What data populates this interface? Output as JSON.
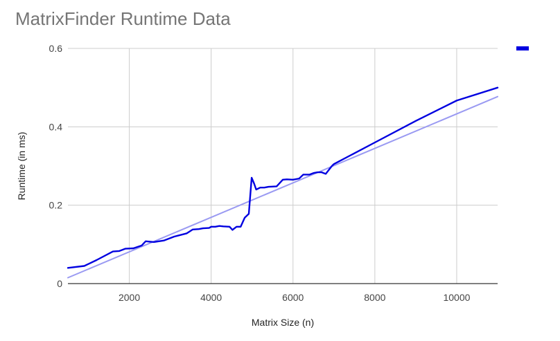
{
  "chart_data": {
    "type": "line",
    "title": "MatrixFinder Runtime Data",
    "xlabel": "Matrix Size (n)",
    "ylabel": "Runtime (in ms)",
    "xlim": [
      500,
      11000
    ],
    "ylim": [
      0,
      0.6
    ],
    "x_ticks": [
      2000,
      4000,
      6000,
      8000,
      10000
    ],
    "y_ticks": [
      0,
      0.2,
      0.4,
      0.6
    ],
    "x_tick_labels": [
      "2000",
      "4000",
      "6000",
      "8000",
      "10000"
    ],
    "y_tick_labels": [
      "0",
      "0.2",
      "0.4",
      "0.6"
    ],
    "grid": true,
    "legend": "right",
    "series": [
      {
        "color": "#0000e0",
        "points": [
          [
            500,
            0.04
          ],
          [
            900,
            0.045
          ],
          [
            1200,
            0.06
          ],
          [
            1600,
            0.082
          ],
          [
            1750,
            0.083
          ],
          [
            1900,
            0.089
          ],
          [
            2100,
            0.09
          ],
          [
            2300,
            0.097
          ],
          [
            2400,
            0.108
          ],
          [
            2600,
            0.106
          ],
          [
            2850,
            0.11
          ],
          [
            3100,
            0.12
          ],
          [
            3400,
            0.128
          ],
          [
            3550,
            0.138
          ],
          [
            3700,
            0.139
          ],
          [
            3800,
            0.141
          ],
          [
            3950,
            0.142
          ],
          [
            4000,
            0.145
          ],
          [
            4100,
            0.145
          ],
          [
            4200,
            0.147
          ],
          [
            4300,
            0.146
          ],
          [
            4450,
            0.145
          ],
          [
            4520,
            0.137
          ],
          [
            4620,
            0.145
          ],
          [
            4720,
            0.145
          ],
          [
            4820,
            0.168
          ],
          [
            4920,
            0.178
          ],
          [
            4990,
            0.27
          ],
          [
            5050,
            0.255
          ],
          [
            5100,
            0.24
          ],
          [
            5200,
            0.245
          ],
          [
            5300,
            0.245
          ],
          [
            5400,
            0.247
          ],
          [
            5600,
            0.248
          ],
          [
            5750,
            0.265
          ],
          [
            5850,
            0.266
          ],
          [
            6000,
            0.265
          ],
          [
            6150,
            0.268
          ],
          [
            6250,
            0.278
          ],
          [
            6400,
            0.278
          ],
          [
            6500,
            0.282
          ],
          [
            6600,
            0.284
          ],
          [
            6700,
            0.284
          ],
          [
            6800,
            0.28
          ],
          [
            6950,
            0.3
          ],
          [
            7000,
            0.305
          ],
          [
            8000,
            0.36
          ],
          [
            9000,
            0.415
          ],
          [
            10000,
            0.467
          ],
          [
            11000,
            0.5
          ]
        ]
      },
      {
        "color": "#9a9af2",
        "points": [
          [
            500,
            0.015
          ],
          [
            11000,
            0.477
          ]
        ]
      }
    ]
  }
}
